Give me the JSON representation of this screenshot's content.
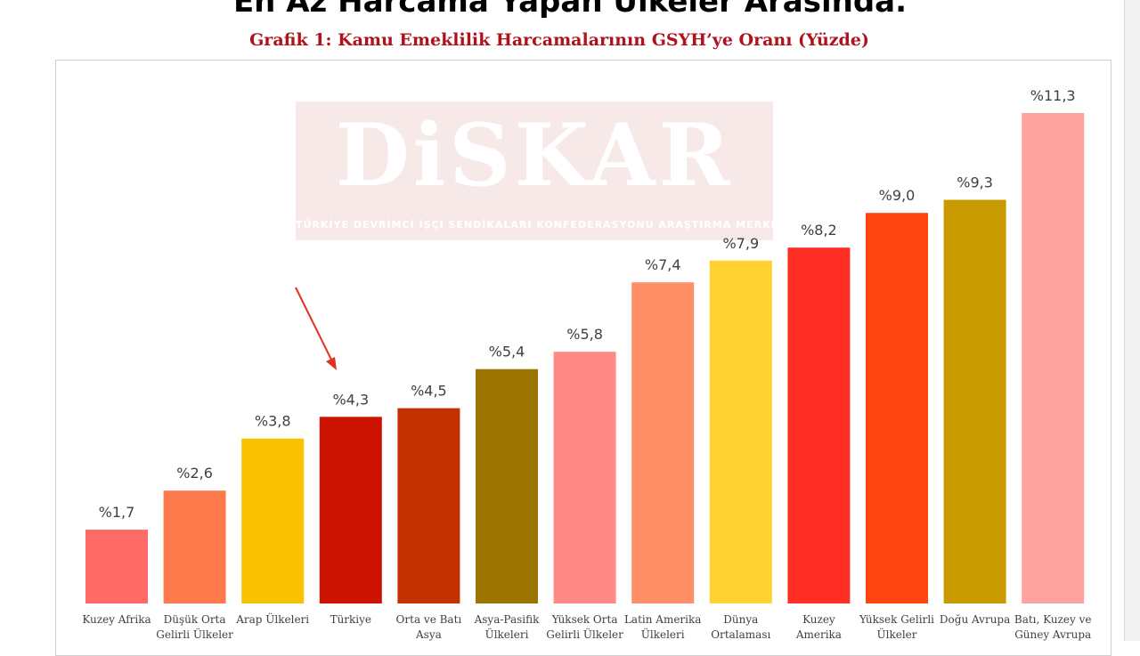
{
  "page": {
    "heading": "En Az Harcama Yapan Ülkeler Arasında.",
    "watermark_logo": "DiSKAR",
    "watermark_subtitle": "TÜRKİYE DEVRİMCİ İŞÇİ SENDİKALARI KONFEDERASYONU ARAŞTIRMA MERKEZİ"
  },
  "chart_data": {
    "type": "bar",
    "title": "Grafik 1: Kamu Emeklilik Harcamalarının GSYH’ye Oranı (Yüzde)",
    "ylim": [
      0,
      12
    ],
    "grid": false,
    "highlight_category": "Türkiye",
    "categories": [
      [
        "Kuzey Afrika"
      ],
      [
        "Düşük Orta",
        "Gelirli Ülkeler"
      ],
      [
        "Arap Ülkeleri"
      ],
      [
        "Türkiye"
      ],
      [
        "Orta ve Batı",
        "Asya"
      ],
      [
        "Asya-Pasifik",
        "Ülkeleri"
      ],
      [
        "Yüksek Orta",
        "Gelirli Ülkeler"
      ],
      [
        "Latin Amerika",
        "Ülkeleri"
      ],
      [
        "Dünya",
        "Ortalaması"
      ],
      [
        "Kuzey",
        "Amerika"
      ],
      [
        "Yüksek Gelirli",
        "Ülkeler"
      ],
      [
        "Doğu Avrupa"
      ],
      [
        "Batı, Kuzey ve",
        "Güney Avrupa"
      ]
    ],
    "values": [
      1.7,
      2.6,
      3.8,
      4.3,
      4.5,
      5.4,
      5.8,
      7.4,
      7.9,
      8.2,
      9.0,
      9.3,
      11.3
    ],
    "value_labels": [
      "%1,7",
      "%2,6",
      "%3,8",
      "%4,3",
      "%4,5",
      "%5,4",
      "%5,8",
      "%7,4",
      "%7,9",
      "%8,2",
      "%9,0",
      "%9,3",
      "%11,3"
    ],
    "colors": [
      "#ff6a66",
      "#ff7a4d",
      "#f8c200",
      "#cc1200",
      "#c43000",
      "#9b7500",
      "#ff8a85",
      "#ff8f66",
      "#ffd232",
      "#ff2e24",
      "#ff4510",
      "#c89a00",
      "#fca3a0"
    ]
  }
}
